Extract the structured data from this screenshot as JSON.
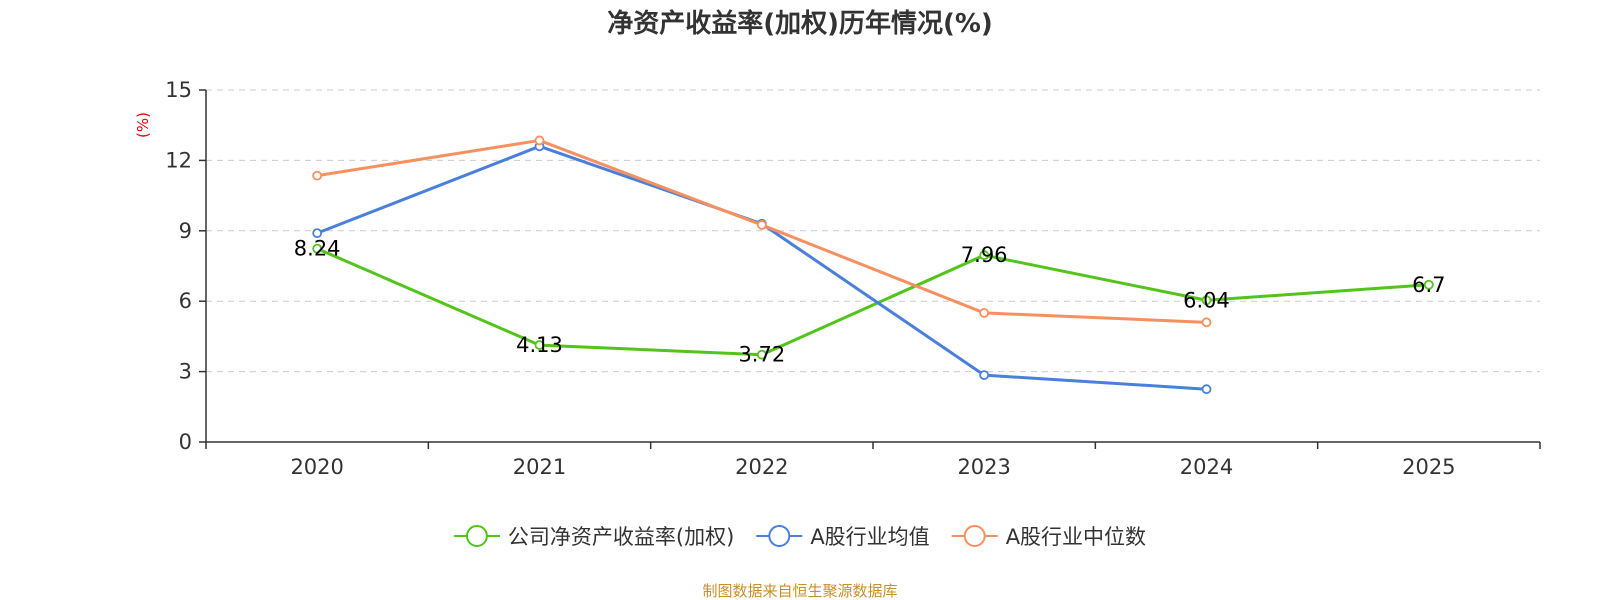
{
  "chart_data": {
    "type": "line",
    "title": "净资产收益率(加权)历年情况(%)",
    "ylabel": "(%)",
    "xlabel": "",
    "categories": [
      "2020",
      "2021",
      "2022",
      "2023",
      "2024",
      "2025"
    ],
    "ylim": [
      0,
      15
    ],
    "yticks": [
      0,
      3,
      6,
      9,
      12,
      15
    ],
    "grid": true,
    "legend_position": "bottom-center",
    "series": [
      {
        "name": "公司净资产收益率(加权)",
        "color": "#52c41a",
        "values": [
          8.24,
          4.13,
          3.72,
          7.96,
          6.04,
          6.7
        ],
        "labels": [
          "8.24",
          "4.13",
          "3.72",
          "7.96",
          "6.04",
          "6.7"
        ]
      },
      {
        "name": "A股行业均值",
        "color": "#4a7fdc",
        "values": [
          8.9,
          12.6,
          9.3,
          2.85,
          2.25,
          null
        ]
      },
      {
        "name": "A股行业中位数",
        "color": "#f79060",
        "values": [
          11.35,
          12.85,
          9.25,
          5.5,
          5.1,
          null
        ]
      }
    ],
    "source": "制图数据来自恒生聚源数据库",
    "source_color": "#c8902a",
    "unit_color": "#e8000b"
  }
}
